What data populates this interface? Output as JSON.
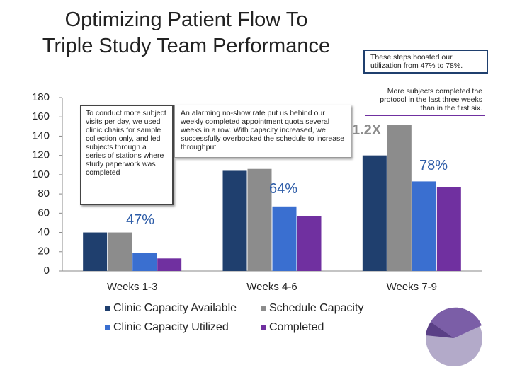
{
  "chart_data": {
    "type": "bar",
    "title": "Optimizing Patient Flow To Triple Study Team Performance",
    "categories": [
      "Weeks 1-3",
      "Weeks 4-6",
      "Weeks 7-9"
    ],
    "series": [
      {
        "name": "Clinic Capacity Available",
        "color": "#1f3f6e",
        "values": [
          40,
          104,
          120
        ]
      },
      {
        "name": "Schedule Capacity",
        "color": "#8c8c8c",
        "values": [
          40,
          106,
          152
        ]
      },
      {
        "name": "Clinic Capacity Utilized",
        "color": "#3a6fd0",
        "values": [
          19,
          67,
          93
        ]
      },
      {
        "name": "Completed",
        "color": "#7030a0",
        "values": [
          13,
          57,
          87
        ]
      }
    ],
    "ylim": [
      0,
      180
    ],
    "yticks": [
      0,
      20,
      40,
      60,
      80,
      100,
      120,
      140,
      160,
      180
    ],
    "grid": false,
    "legend": "bottom",
    "annotations": [
      "47%",
      "64%",
      "78%",
      "1.2X",
      "To conduct more subject visits per day, we used clinic chairs for sample collection only, and led subjects through a series of stations where study paperwork was completed",
      "An alarming no-show rate put us behind our weekly completed appointment quota several weeks in a row. With capacity increased, we successfully overbooked the schedule to increase throughput",
      "These steps boosted our utilization from 47% to 78%.",
      "More subjects completed the protocol in the last three weeks than in the first six."
    ]
  }
}
